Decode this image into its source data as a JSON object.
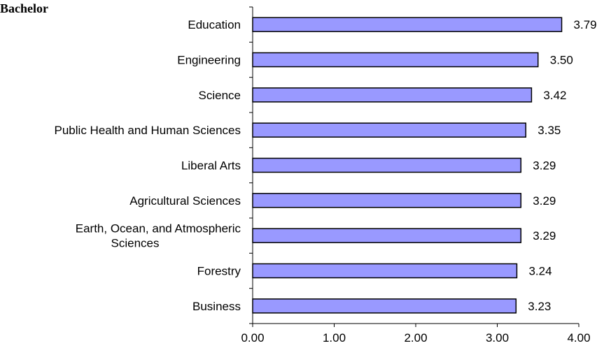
{
  "chart_data": {
    "type": "bar",
    "orientation": "horizontal",
    "title": "Bachelor",
    "xlabel": "",
    "ylabel": "",
    "categories": [
      "Education",
      "Engineering",
      "Science",
      "Public Health and Human Sciences",
      "Liberal Arts",
      "Agricultural Sciences",
      "Earth, Ocean, and Atmospheric Sciences",
      "Forestry",
      "Business"
    ],
    "category_lines": [
      [
        "Education"
      ],
      [
        "Engineering"
      ],
      [
        "Science"
      ],
      [
        "Public Health and Human Sciences"
      ],
      [
        "Liberal Arts"
      ],
      [
        "Agricultural Sciences"
      ],
      [
        "Earth, Ocean, and Atmospheric",
        "Sciences"
      ],
      [
        "Forestry"
      ],
      [
        "Business"
      ]
    ],
    "values": [
      3.79,
      3.5,
      3.42,
      3.35,
      3.29,
      3.29,
      3.29,
      3.24,
      3.23
    ],
    "value_labels": [
      "3.79",
      "3.50",
      "3.42",
      "3.35",
      "3.29",
      "3.29",
      "3.29",
      "3.24",
      "3.23"
    ],
    "xlim": [
      0,
      4
    ],
    "ticks": [
      0,
      1,
      2,
      3,
      4
    ],
    "tick_labels": [
      "0.00",
      "1.00",
      "2.00",
      "3.00",
      "4.00"
    ],
    "bar_color": "#9999ff",
    "bar_border": "#000000",
    "grid": false,
    "legend": "none"
  }
}
